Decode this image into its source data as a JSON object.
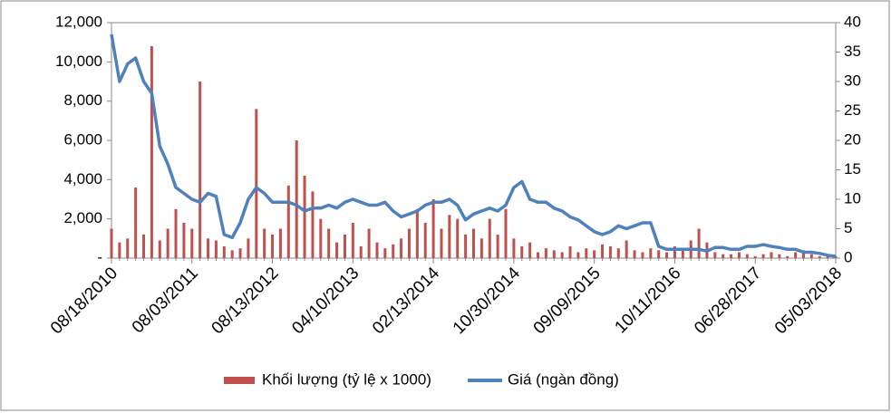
{
  "chart_data": {
    "type": "bar-line",
    "categories": [
      "08/18/2010",
      null,
      null,
      null,
      null,
      null,
      null,
      null,
      null,
      null,
      "08/03/2011",
      null,
      null,
      null,
      null,
      null,
      null,
      null,
      null,
      null,
      "08/13/2012",
      null,
      null,
      null,
      null,
      null,
      null,
      null,
      null,
      null,
      "04/10/2013",
      null,
      null,
      null,
      null,
      null,
      null,
      null,
      null,
      null,
      "02/13/2014",
      null,
      null,
      null,
      null,
      null,
      null,
      null,
      null,
      null,
      "10/30/2014",
      null,
      null,
      null,
      null,
      null,
      null,
      null,
      null,
      null,
      "09/09/2015",
      null,
      null,
      null,
      null,
      null,
      null,
      null,
      null,
      null,
      "10/11/2016",
      null,
      null,
      null,
      null,
      null,
      null,
      null,
      null,
      null,
      "06/28/2017",
      null,
      null,
      null,
      null,
      null,
      null,
      null,
      null,
      null,
      "05/03/2018"
    ],
    "series": [
      {
        "name": "Khối lượng (tỷ lệ x 1000)",
        "color": "#c0504d",
        "values": [
          1500,
          800,
          1000,
          3600,
          1200,
          10800,
          900,
          1500,
          2500,
          1800,
          1500,
          9000,
          1000,
          900,
          600,
          400,
          500,
          1000,
          7600,
          1500,
          1200,
          1500,
          3700,
          6000,
          4200,
          3400,
          2000,
          1500,
          800,
          1200,
          1800,
          600,
          1500,
          800,
          500,
          700,
          1000,
          1500,
          2500,
          1800,
          3000,
          1500,
          2200,
          2000,
          1200,
          1500,
          1000,
          2000,
          1200,
          2500,
          1000,
          600,
          800,
          300,
          500,
          400,
          300,
          600,
          300,
          500,
          400,
          700,
          600,
          500,
          900,
          400,
          300,
          500,
          400,
          300,
          600,
          500,
          900,
          1500,
          800,
          300,
          200,
          200,
          300,
          200,
          100,
          200,
          300,
          200,
          100,
          300,
          400,
          200,
          100,
          100,
          100
        ]
      },
      {
        "name": "Giá (ngàn đồng)",
        "color": "#4f81bd",
        "axis": "y2",
        "values": [
          38,
          30,
          33,
          34,
          30,
          28,
          19,
          16,
          12,
          11,
          10,
          9.5,
          11,
          10.5,
          4,
          3.5,
          6,
          10,
          12,
          11,
          9.5,
          9.5,
          9.5,
          9,
          8,
          8.5,
          8.5,
          9,
          8.5,
          9.5,
          10,
          9.5,
          9,
          9,
          9.5,
          8,
          7,
          7.5,
          8,
          9,
          9.5,
          9.5,
          10,
          9,
          6.5,
          7.5,
          8,
          8.5,
          8,
          9,
          12,
          13,
          10,
          9.5,
          9.5,
          8.5,
          8,
          7,
          6.5,
          5.5,
          4.5,
          4,
          4.5,
          5.5,
          5,
          5.5,
          6,
          6,
          2,
          1.5,
          1.5,
          1.5,
          1.5,
          1.5,
          1.2,
          1.8,
          1.8,
          1.5,
          1.5,
          2,
          2,
          2.3,
          2,
          1.8,
          1.5,
          1.5,
          1,
          1,
          0.8,
          0.5,
          0.3
        ]
      }
    ],
    "ylim": [
      0,
      12000
    ],
    "yticks": [
      {
        "value": 0,
        "label": "-"
      },
      {
        "value": 2000,
        "label": "2,000"
      },
      {
        "value": 4000,
        "label": "4,000"
      },
      {
        "value": 6000,
        "label": "6,000"
      },
      {
        "value": 8000,
        "label": "8,000"
      },
      {
        "value": 10000,
        "label": "10,000"
      },
      {
        "value": 12000,
        "label": "12,000"
      }
    ],
    "y2lim": [
      0,
      40
    ],
    "y2ticks": [
      0,
      5,
      10,
      15,
      20,
      25,
      30,
      35,
      40
    ],
    "legend": "bottom"
  }
}
